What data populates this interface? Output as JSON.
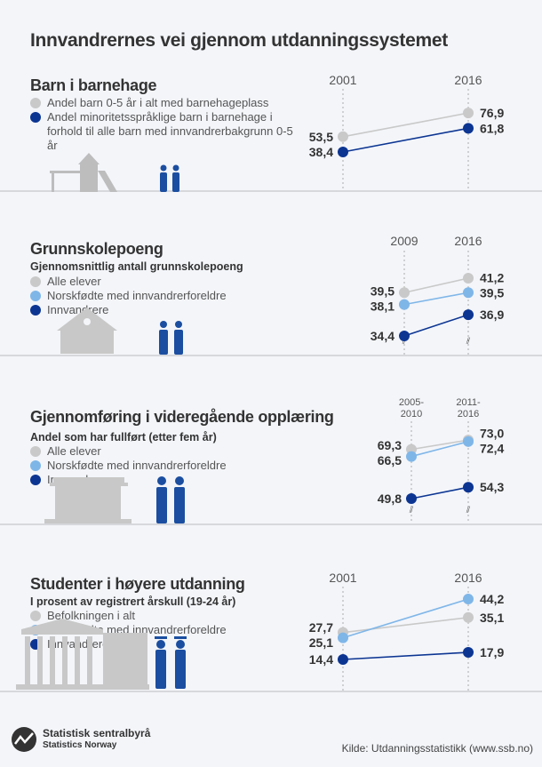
{
  "title": "Innvandrernes vei gjennom utdanningssystemet",
  "colors": {
    "gray": "#c9c9c9",
    "light_blue": "#7fb6e8",
    "dark_blue": "#0c3592",
    "divider": "#d6d8dc",
    "background": "#f3f5f9"
  },
  "panels": [
    {
      "title": "Barn i barnehage",
      "subtitle": "",
      "legend": [
        "Andel barn 0-5 år i alt med barnehageplass",
        "Andel minoritetsspråklige barn i barnehage i forhold til alle barn med innvandrerbakgrunn 0-5 år"
      ],
      "icon": "playground-icon"
    },
    {
      "title": "Grunnskolepoeng",
      "subtitle": "Gjennomsnittlig antall grunnskolepoeng",
      "legend": [
        "Alle elever",
        "Norskfødte med innvandrerforeldre",
        "Innvandrere"
      ],
      "icon": "school-building-icon"
    },
    {
      "title": "Gjennomføring i videregående opplæring",
      "subtitle": "Andel som har fullført (etter fem år)",
      "legend": [
        "Alle elever",
        "Norskfødte med innvandrerforeldre",
        "Innvandrere"
      ],
      "icon": "high-school-building-icon"
    },
    {
      "title": "Studenter i høyere utdanning",
      "subtitle": "I prosent av registrert årskull (19-24 år)",
      "legend": [
        "Befolkningen i alt",
        "Norskfødte med innvandrerforeldre",
        "Innvandrere"
      ],
      "icon": "university-building-icon"
    }
  ],
  "chart_data": [
    {
      "type": "line",
      "categories": [
        "2001",
        "2016"
      ],
      "series": [
        {
          "name": "Andel barn 0-5 år i alt med barnehageplass",
          "color": "#c9c9c9",
          "values": [
            53.5,
            76.9
          ],
          "labels": [
            "53,5",
            "76,9"
          ]
        },
        {
          "name": "Andel minoritetsspråklige barn i barnehage i forhold til alle barn med innvandrerbakgrunn 0-5 år",
          "color": "#0c3592",
          "values": [
            38.4,
            61.8
          ],
          "labels": [
            "38,4",
            "61,8"
          ]
        }
      ],
      "axis_break": false
    },
    {
      "type": "line",
      "categories": [
        "2009",
        "2016"
      ],
      "series": [
        {
          "name": "Alle elever",
          "color": "#c9c9c9",
          "values": [
            39.5,
            41.2
          ],
          "labels": [
            "39,5",
            "41,2"
          ]
        },
        {
          "name": "Norskfødte med innvandrerforeldre",
          "color": "#7fb6e8",
          "values": [
            38.1,
            39.5
          ],
          "labels": [
            "38,1",
            "39,5"
          ]
        },
        {
          "name": "Innvandrere",
          "color": "#0c3592",
          "values": [
            34.4,
            36.9
          ],
          "labels": [
            "34,4",
            "36,9"
          ]
        }
      ],
      "axis_break": true
    },
    {
      "type": "line",
      "categories": [
        "2005-\n2010",
        "2011-\n2016"
      ],
      "series": [
        {
          "name": "Alle elever",
          "color": "#c9c9c9",
          "values": [
            69.3,
            73.0
          ],
          "labels": [
            "69,3",
            "73,0"
          ]
        },
        {
          "name": "Norskfødte med innvandrerforeldre",
          "color": "#7fb6e8",
          "values": [
            66.5,
            72.4
          ],
          "labels": [
            "66,5",
            "72,4"
          ]
        },
        {
          "name": "Innvandrere",
          "color": "#0c3592",
          "values": [
            49.8,
            54.3
          ],
          "labels": [
            "49,8",
            "54,3"
          ]
        }
      ],
      "axis_break": true
    },
    {
      "type": "line",
      "categories": [
        "2001",
        "2016"
      ],
      "series": [
        {
          "name": "Befolkningen i alt",
          "color": "#c9c9c9",
          "values": [
            27.7,
            35.1
          ],
          "labels": [
            "27,7",
            "35,1"
          ]
        },
        {
          "name": "Norskfødte med innvandrerforeldre",
          "color": "#7fb6e8",
          "values": [
            25.1,
            44.2
          ],
          "labels": [
            "25,1",
            "44,2"
          ]
        },
        {
          "name": "Innvandrere",
          "color": "#0c3592",
          "values": [
            14.4,
            17.9
          ],
          "labels": [
            "14,4",
            "17,9"
          ]
        }
      ],
      "axis_break": false
    }
  ],
  "footer": {
    "logo_name": "Statistisk sentralbyrå",
    "logo_name_en": "Statistics Norway",
    "source": "Kilde: Utdanningsstatistikk (www.ssb.no)"
  }
}
